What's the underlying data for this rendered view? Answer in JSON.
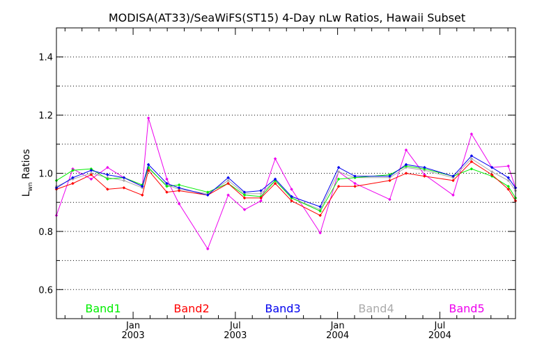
{
  "chart_data": {
    "type": "line",
    "title": "MODISA(AT33)/SeaWiFS(ST15) 4-Day nLw Ratios, Hawaii Subset",
    "ylabel_main": "L",
    "ylabel_sub": "wn",
    "ylabel_rest": " Ratios",
    "ylim": [
      0.5,
      1.5
    ],
    "xlim": [
      2002.625,
      2004.87
    ],
    "yticks": [
      {
        "v": 0.6,
        "label": "0.6"
      },
      {
        "v": 0.8,
        "label": "0.8"
      },
      {
        "v": 1.0,
        "label": "1.0"
      },
      {
        "v": 1.2,
        "label": "1.2"
      },
      {
        "v": 1.4,
        "label": "1.4"
      }
    ],
    "yminor": [
      0.7,
      0.9,
      1.1,
      1.3
    ],
    "grid": true,
    "xticks": [
      {
        "v": 2003.0,
        "month": "Jan",
        "year": "2003"
      },
      {
        "v": 2003.5,
        "month": "Jul",
        "year": "2003"
      },
      {
        "v": 2004.0,
        "month": "Jan",
        "year": "2004"
      },
      {
        "v": 2004.5,
        "month": "Jul",
        "year": "2004"
      }
    ],
    "xminor": [
      2002.667,
      2002.75,
      2002.833,
      2002.917,
      2003.083,
      2003.167,
      2003.25,
      2003.333,
      2003.417,
      2003.583,
      2003.667,
      2003.75,
      2003.833,
      2003.917,
      2004.083,
      2004.167,
      2004.25,
      2004.333,
      2004.417,
      2004.583,
      2004.667,
      2004.75,
      2004.833
    ],
    "legend_placement": "bottom",
    "series": [
      {
        "name": "Band1",
        "color": "#00ee00",
        "x": [
          2002.625,
          2002.705,
          2002.795,
          2002.875,
          2002.955,
          2003.045,
          2003.075,
          2003.165,
          2003.225,
          2003.365,
          2003.465,
          2003.545,
          2003.625,
          2003.695,
          2003.775,
          2003.915,
          2004.005,
          2004.085,
          2004.255,
          2004.335,
          2004.425,
          2004.565,
          2004.655,
          2004.755,
          2004.835,
          2004.87
        ],
        "y": [
          0.975,
          1.01,
          1.015,
          0.98,
          0.985,
          0.96,
          1.02,
          0.955,
          0.96,
          0.935,
          0.965,
          0.925,
          0.92,
          0.975,
          0.915,
          0.87,
          0.98,
          0.985,
          0.995,
          1.025,
          1.015,
          0.99,
          1.015,
          0.99,
          0.955,
          0.915
        ]
      },
      {
        "name": "Band2",
        "color": "#ff0000",
        "x": [
          2002.625,
          2002.705,
          2002.795,
          2002.875,
          2002.955,
          2003.045,
          2003.075,
          2003.165,
          2003.225,
          2003.365,
          2003.465,
          2003.545,
          2003.625,
          2003.695,
          2003.775,
          2003.915,
          2004.005,
          2004.085,
          2004.255,
          2004.335,
          2004.425,
          2004.565,
          2004.655,
          2004.755,
          2004.835,
          2004.87
        ],
        "y": [
          0.945,
          0.965,
          0.995,
          0.945,
          0.95,
          0.925,
          1.01,
          0.935,
          0.94,
          0.925,
          0.965,
          0.915,
          0.915,
          0.965,
          0.905,
          0.855,
          0.955,
          0.955,
          0.975,
          1.0,
          0.99,
          0.975,
          1.04,
          0.995,
          0.945,
          0.905
        ]
      },
      {
        "name": "Band3",
        "color": "#0000ee",
        "x": [
          2002.625,
          2002.705,
          2002.795,
          2002.875,
          2002.955,
          2003.045,
          2003.075,
          2003.165,
          2003.225,
          2003.365,
          2003.465,
          2003.545,
          2003.625,
          2003.695,
          2003.775,
          2003.915,
          2004.005,
          2004.085,
          2004.255,
          2004.335,
          2004.425,
          2004.565,
          2004.655,
          2004.755,
          2004.835,
          2004.87
        ],
        "y": [
          0.95,
          0.985,
          1.01,
          0.995,
          0.985,
          0.955,
          1.03,
          0.965,
          0.95,
          0.925,
          0.985,
          0.935,
          0.94,
          0.98,
          0.92,
          0.885,
          1.02,
          0.99,
          0.99,
          1.03,
          1.02,
          0.99,
          1.06,
          1.02,
          0.985,
          0.95
        ]
      },
      {
        "name": "Band4",
        "color": "#aaaaaa",
        "x": [
          2002.625,
          2002.705,
          2002.795,
          2002.875,
          2002.955,
          2003.045,
          2003.075,
          2003.165,
          2003.225,
          2003.365,
          2003.465,
          2003.545,
          2003.625,
          2003.695,
          2003.775,
          2003.915,
          2004.005,
          2004.085,
          2004.255,
          2004.335,
          2004.425,
          2004.565,
          2004.655,
          2004.755,
          2004.835,
          2004.87
        ],
        "y": [
          0.955,
          0.98,
          1.0,
          0.985,
          0.975,
          0.95,
          1.015,
          0.96,
          0.945,
          0.93,
          0.975,
          0.93,
          0.93,
          0.975,
          0.915,
          0.875,
          1.005,
          0.985,
          0.985,
          1.02,
          1.01,
          0.985,
          1.05,
          1.005,
          0.975,
          0.94
        ]
      },
      {
        "name": "Band5",
        "color": "#ee00ee",
        "x": [
          2002.625,
          2002.705,
          2002.795,
          2002.875,
          2002.955,
          2003.045,
          2003.075,
          2003.165,
          2003.225,
          2003.365,
          2003.465,
          2003.545,
          2003.625,
          2003.695,
          2003.775,
          2003.915,
          2004.005,
          2004.085,
          2004.255,
          2004.335,
          2004.425,
          2004.565,
          2004.655,
          2004.755,
          2004.835,
          2004.87
        ],
        "y": [
          0.855,
          1.015,
          0.98,
          1.02,
          0.985,
          0.955,
          1.19,
          0.98,
          0.895,
          0.74,
          0.925,
          0.875,
          0.905,
          1.05,
          0.945,
          0.795,
          1.005,
          0.965,
          0.91,
          1.08,
          0.995,
          0.925,
          1.135,
          1.02,
          1.025,
          0.95
        ]
      }
    ]
  }
}
